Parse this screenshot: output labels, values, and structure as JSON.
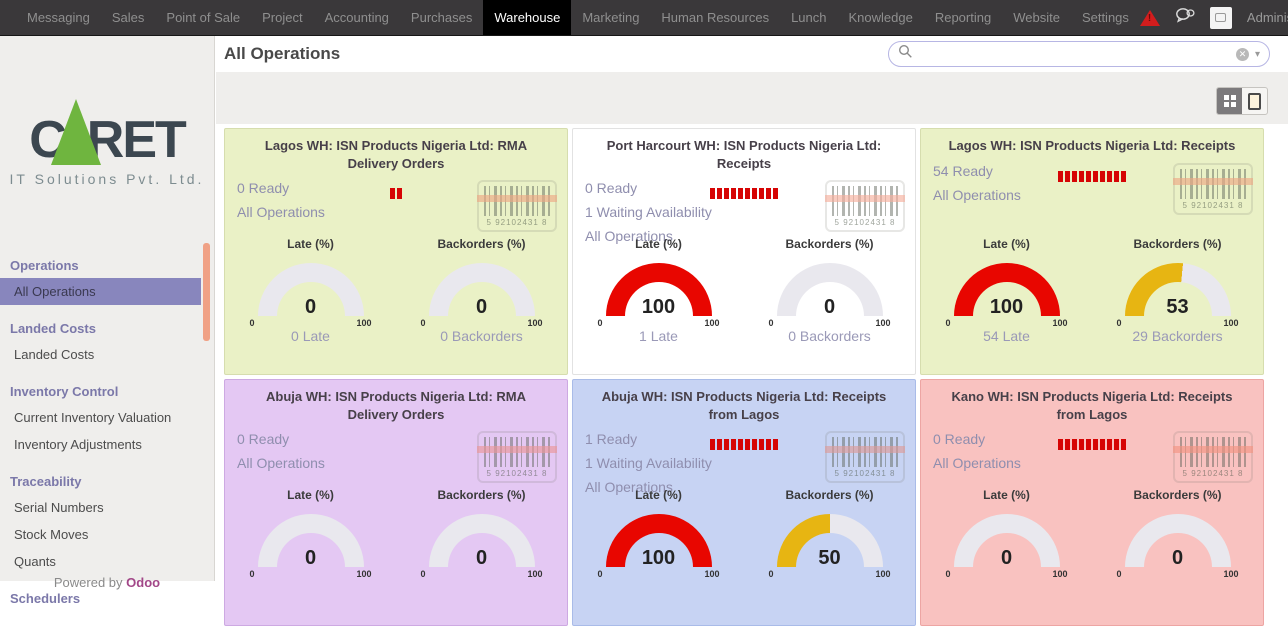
{
  "topnav": {
    "items": [
      "Messaging",
      "Sales",
      "Point of Sale",
      "Project",
      "Accounting",
      "Purchases",
      "Warehouse",
      "Marketing",
      "Human Resources",
      "Lunch",
      "Knowledge",
      "Reporting",
      "Website",
      "Settings"
    ],
    "active_item": "Warehouse",
    "user_name": "Administrator"
  },
  "sidebar": {
    "logo": {
      "letter_c": "C",
      "letters_ret": "RET",
      "subtitle": "IT Solutions Pvt. Ltd."
    },
    "sections": [
      {
        "title": "Operations",
        "items": [
          {
            "label": "All Operations",
            "selected": true
          }
        ]
      },
      {
        "title": "Landed Costs",
        "items": [
          {
            "label": "Landed Costs",
            "selected": false
          }
        ]
      },
      {
        "title": "Inventory Control",
        "items": [
          {
            "label": "Current Inventory Valuation",
            "selected": false
          },
          {
            "label": "Inventory Adjustments",
            "selected": false
          }
        ]
      },
      {
        "title": "Traceability",
        "items": [
          {
            "label": "Serial Numbers",
            "selected": false
          },
          {
            "label": "Stock Moves",
            "selected": false
          },
          {
            "label": "Quants",
            "selected": false
          }
        ]
      },
      {
        "title": "Schedulers",
        "items": []
      }
    ],
    "footer": {
      "prefix": "Powered by ",
      "brand": "Odoo"
    }
  },
  "header": {
    "title": "All Operations",
    "search_value": ""
  },
  "view_switcher": {
    "kanban_active": true,
    "list_active": false
  },
  "barcode": {
    "digits": "5 92102431 8"
  },
  "gauge_ticks": {
    "min": "0",
    "max": "100"
  },
  "colors": {
    "nav_bg": "#3a383a",
    "selected_menu": "#8886bd",
    "scrollbar_thumb": "#f0a185",
    "late_fill": "#e80600",
    "backorders_fill": "#e7b512",
    "gauge_track": "#e9e8ee",
    "odoo_brand": "#a24788",
    "alert_red": "#d31d1d",
    "logo_green": "#6fb53f"
  },
  "cards": [
    {
      "title": "Lagos WH: ISN Products Nigeria Ltd: RMA Delivery Orders",
      "bg": "#eaf1c6",
      "border": "#d6ddae",
      "links": [
        "0 Ready",
        "All Operations"
      ],
      "sparkline_bars": 2,
      "gauges": [
        {
          "label": "Late (%)",
          "value": 0,
          "fill": "#e80600",
          "link": "0 Late"
        },
        {
          "label": "Backorders (%)",
          "value": 0,
          "fill": "#e7b512",
          "link": "0 Backorders"
        }
      ]
    },
    {
      "title": "Port Harcourt WH: ISN Products Nigeria Ltd: Receipts",
      "bg": "#ffffff",
      "border": "#e2e2e2",
      "links": [
        "0 Ready",
        "1 Waiting Availability",
        "All Operations"
      ],
      "sparkline_bars": 10,
      "gauges": [
        {
          "label": "Late (%)",
          "value": 100,
          "fill": "#e80600",
          "link": "1 Late"
        },
        {
          "label": "Backorders (%)",
          "value": 0,
          "fill": "#e7b512",
          "link": "0 Backorders"
        }
      ]
    },
    {
      "title": "Lagos WH: ISN Products Nigeria Ltd: Receipts",
      "bg": "#eaf1c6",
      "border": "#d6ddae",
      "links": [
        "54 Ready",
        "All Operations"
      ],
      "sparkline_bars": 10,
      "gauges": [
        {
          "label": "Late (%)",
          "value": 100,
          "fill": "#e80600",
          "link": "54 Late"
        },
        {
          "label": "Backorders (%)",
          "value": 53,
          "fill": "#e7b512",
          "link": "29 Backorders"
        }
      ]
    },
    {
      "title": "Abuja WH: ISN Products Nigeria Ltd: RMA Delivery Orders",
      "bg": "#e4c8f3",
      "border": "#cda9e2",
      "links": [
        "0 Ready",
        "All Operations"
      ],
      "sparkline_bars": 0,
      "gauges": [
        {
          "label": "Late (%)",
          "value": 0,
          "fill": "#e80600",
          "link": null
        },
        {
          "label": "Backorders (%)",
          "value": 0,
          "fill": "#e7b512",
          "link": null
        }
      ]
    },
    {
      "title": "Abuja WH: ISN Products Nigeria Ltd: Receipts from Lagos",
      "bg": "#c7d3f3",
      "border": "#a9bbe8",
      "links": [
        "1 Ready",
        "1 Waiting Availability",
        "All Operations"
      ],
      "sparkline_bars": 10,
      "gauges": [
        {
          "label": "Late (%)",
          "value": 100,
          "fill": "#e80600",
          "link": null
        },
        {
          "label": "Backorders (%)",
          "value": 50,
          "fill": "#e7b512",
          "link": null
        }
      ]
    },
    {
      "title": "Kano WH: ISN Products Nigeria Ltd: Receipts from Lagos",
      "bg": "#f9c2c0",
      "border": "#eda5a3",
      "links": [
        "0 Ready",
        "All Operations"
      ],
      "sparkline_bars": 10,
      "gauges": [
        {
          "label": "Late (%)",
          "value": 0,
          "fill": "#e80600",
          "link": null
        },
        {
          "label": "Backorders (%)",
          "value": 0,
          "fill": "#e7b512",
          "link": null
        }
      ]
    }
  ]
}
